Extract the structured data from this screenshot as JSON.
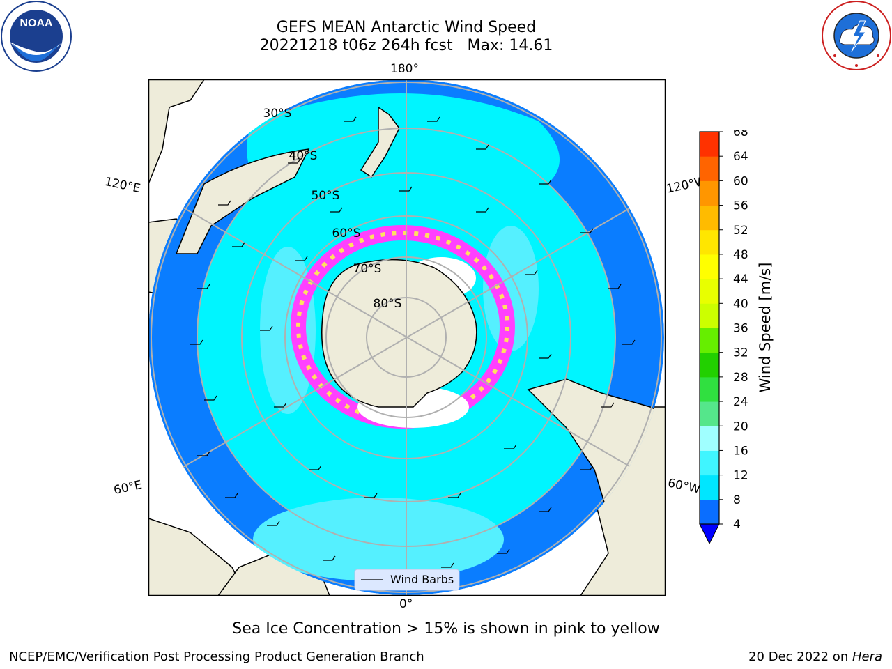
{
  "header": {
    "title_line1": "GEFS MEAN Antarctic Wind Speed",
    "title_line2": "20221218 t06z 264h fcst   Max: 14.61"
  },
  "map": {
    "projection": "south-polar-stereographic",
    "longitude_labels": {
      "top": "180°",
      "bottom": "0°",
      "left_upper": "120°E",
      "left_lower": "60°E",
      "right_upper": "120°W",
      "right_lower": "60°W"
    },
    "latitude_labels": [
      "30°S",
      "40°S",
      "50°S",
      "60°S",
      "70°S",
      "80°S"
    ],
    "legend_label": "Wind Barbs",
    "colors": {
      "land": "#eeecda",
      "ocean_low": "#0a7dff",
      "ocean_mid": "#00f5ff",
      "ocean_high": "#55f0ff",
      "sea_ice_pink": "#ff40ff",
      "sea_ice_yellow": "#ffe060",
      "graticule": "#b0b0b0"
    }
  },
  "colorbar": {
    "label": "Wind Speed [m/s]",
    "ticks": [
      "4",
      "8",
      "12",
      "16",
      "20",
      "24",
      "28",
      "32",
      "36",
      "40",
      "44",
      "48",
      "52",
      "56",
      "60",
      "64",
      "68"
    ],
    "colors": [
      "#0a6eff",
      "#00e6ff",
      "#40f5ff",
      "#a0ffff",
      "#55e68b",
      "#30e040",
      "#22d000",
      "#66ee00",
      "#ccff00",
      "#e8ff00",
      "#ffff00",
      "#ffe600",
      "#ffbb00",
      "#ff9600",
      "#ff6400",
      "#ff3200",
      "#ff0000"
    ],
    "extend_color": "#0000ff",
    "extend": "min"
  },
  "logos": {
    "noaa": "NOAA",
    "nws": "NATIONAL WEATHER SERVICE"
  },
  "footer": {
    "note": "Sea Ice Concentration > 15% is shown in pink to yellow",
    "left": "NCEP/EMC/Verification Post Processing Product Generation Branch",
    "right_prefix": "20 Dec 2022 on ",
    "right_host": "Hera"
  }
}
